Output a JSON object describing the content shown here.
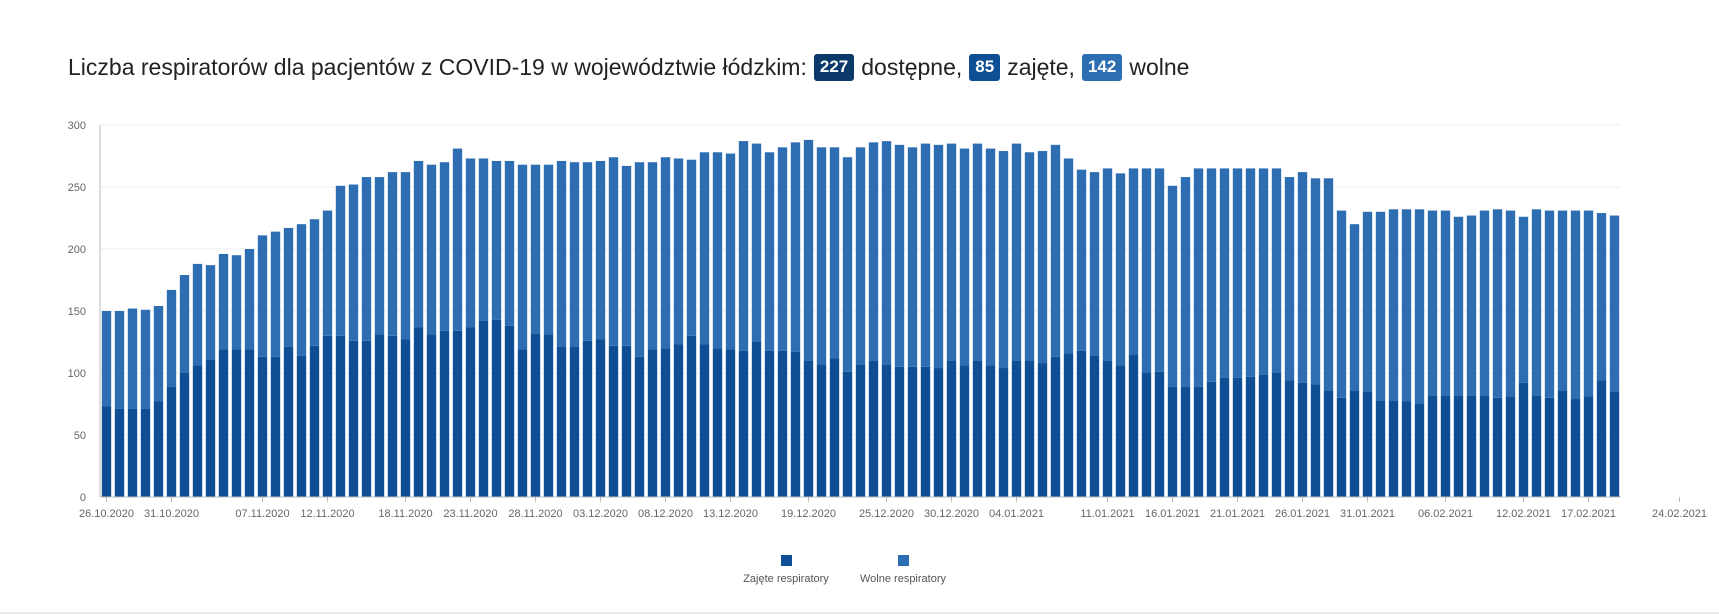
{
  "title": {
    "prefix": "Liczba respiratorów dla pacjentów z COVID-19 w województwie łódzkim:",
    "available_value": "227",
    "available_label": "dostępne,",
    "occupied_value": "85",
    "occupied_label": "zajęte,",
    "free_value": "142",
    "free_label": "wolne"
  },
  "colors": {
    "occupied": "#0d4e95",
    "free": "#2d6db1",
    "grid": "#eeeeee",
    "axis": "#bbbbbb"
  },
  "chart_data": {
    "type": "bar",
    "stacked": true,
    "title": "Liczba respiratorów dla pacjentów z COVID-19 w województwie łódzkim: 227 dostępne, 85 zajęte, 142 wolne",
    "start_date": "26.10.2020",
    "ylim": [
      0,
      300
    ],
    "yticks": [
      0,
      50,
      100,
      150,
      200,
      250,
      300
    ],
    "x_tick_labels": [
      {
        "index": 0,
        "label": "26.10.2020"
      },
      {
        "index": 5,
        "label": "31.10.2020"
      },
      {
        "index": 12,
        "label": "07.11.2020"
      },
      {
        "index": 17,
        "label": "12.11.2020"
      },
      {
        "index": 23,
        "label": "18.11.2020"
      },
      {
        "index": 28,
        "label": "23.11.2020"
      },
      {
        "index": 33,
        "label": "28.11.2020"
      },
      {
        "index": 38,
        "label": "03.12.2020"
      },
      {
        "index": 43,
        "label": "08.12.2020"
      },
      {
        "index": 48,
        "label": "13.12.2020"
      },
      {
        "index": 54,
        "label": "19.12.2020"
      },
      {
        "index": 60,
        "label": "25.12.2020"
      },
      {
        "index": 65,
        "label": "30.12.2020"
      },
      {
        "index": 70,
        "label": "04.01.2021"
      },
      {
        "index": 77,
        "label": "11.01.2021"
      },
      {
        "index": 82,
        "label": "16.01.2021"
      },
      {
        "index": 87,
        "label": "21.01.2021"
      },
      {
        "index": 92,
        "label": "26.01.2021"
      },
      {
        "index": 97,
        "label": "31.01.2021"
      },
      {
        "index": 103,
        "label": "06.02.2021"
      },
      {
        "index": 109,
        "label": "12.02.2021"
      },
      {
        "index": 114,
        "label": "17.02.2021"
      },
      {
        "index": 121,
        "label": "24.02.2021"
      }
    ],
    "series": [
      {
        "name": "Zajęte respiratory",
        "values": [
          73,
          71,
          71,
          71,
          77,
          89,
          100,
          106,
          111,
          119,
          119,
          119,
          113,
          113,
          121,
          114,
          122,
          130,
          130,
          126,
          126,
          131,
          130,
          127,
          137,
          131,
          134,
          134,
          137,
          142,
          143,
          138,
          119,
          132,
          131,
          121,
          121,
          126,
          127,
          122,
          122,
          113,
          119,
          120,
          123,
          130,
          123,
          120,
          119,
          118,
          125,
          118,
          118,
          117,
          110,
          107,
          112,
          101,
          107,
          110,
          107,
          105,
          105,
          105,
          104,
          110,
          106,
          110,
          106,
          104,
          110,
          110,
          108,
          113,
          116,
          118,
          114,
          110,
          106,
          115,
          100,
          101,
          89,
          89,
          89,
          93,
          96,
          96,
          97,
          99,
          100,
          94,
          92,
          91,
          86,
          80,
          86,
          85,
          78,
          78,
          77,
          75,
          82,
          82,
          82,
          82,
          82,
          80,
          81,
          92,
          82,
          80,
          86,
          79,
          81,
          94,
          85
        ]
      },
      {
        "name": "Wolne respiratory",
        "values": [
          77,
          79,
          81,
          80,
          77,
          78,
          79,
          82,
          76,
          77,
          76,
          81,
          98,
          101,
          96,
          106,
          102,
          101,
          121,
          126,
          132,
          127,
          132,
          135,
          134,
          137,
          136,
          147,
          136,
          131,
          128,
          133,
          149,
          136,
          137,
          150,
          149,
          144,
          144,
          152,
          145,
          157,
          151,
          154,
          150,
          142,
          155,
          158,
          158,
          169,
          160,
          160,
          164,
          169,
          178,
          175,
          170,
          173,
          175,
          176,
          180,
          179,
          177,
          180,
          180,
          175,
          175,
          175,
          175,
          175,
          175,
          168,
          171,
          171,
          157,
          146,
          148,
          155,
          155,
          150,
          165,
          164,
          162,
          169,
          176,
          172,
          169,
          169,
          168,
          166,
          165,
          164,
          170,
          166,
          171,
          151,
          134,
          145,
          152,
          154,
          155,
          157,
          149,
          149,
          144,
          145,
          149,
          152,
          150,
          134,
          150,
          151,
          145,
          152,
          150,
          135,
          142
        ]
      }
    ],
    "legend": [
      "Zajęte respiratory",
      "Wolne respiratory"
    ],
    "legend_position": "bottom-center",
    "grid": true
  }
}
